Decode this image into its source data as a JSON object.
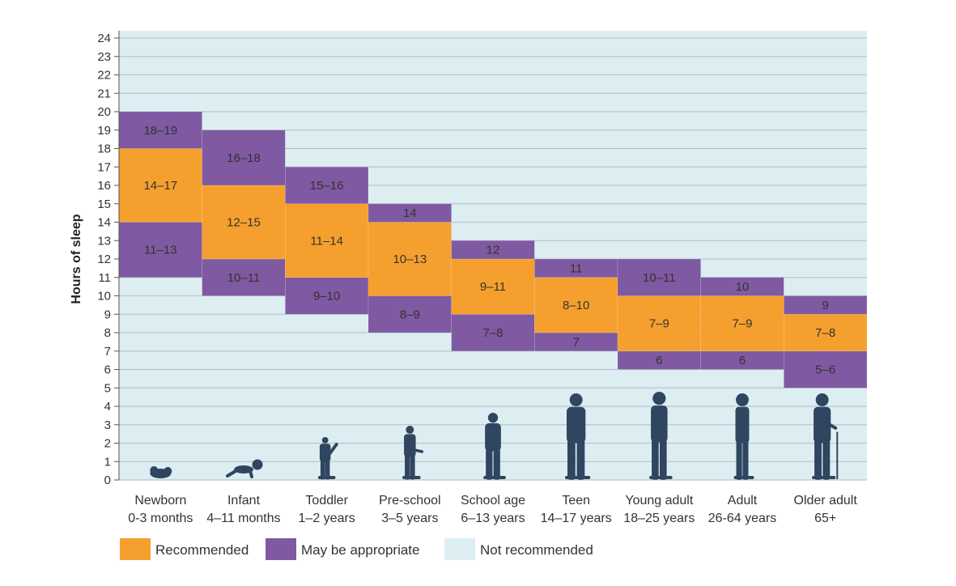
{
  "chart_data": {
    "type": "bar",
    "ylabel": "Hours of sleep",
    "ylim": [
      0,
      24
    ],
    "yticks": [
      0,
      1,
      2,
      3,
      4,
      5,
      6,
      7,
      8,
      9,
      10,
      11,
      12,
      13,
      14,
      15,
      16,
      17,
      18,
      19,
      20,
      21,
      22,
      23,
      24
    ],
    "grid": true,
    "legend_position": "bottom",
    "colors": {
      "recommended": "#f5a02e",
      "may_be_appropriate": "#7f59a1",
      "not_recommended": "#ddeef3",
      "silhouette": "#2f4560",
      "grid": "#b9c6cc"
    },
    "categories": [
      {
        "name": "Newborn",
        "age": "0-3 months",
        "icon": "newborn-silhouette-icon",
        "segments": [
          {
            "type": "may_be_appropriate",
            "from": 11,
            "to": 14,
            "label": "11–13"
          },
          {
            "type": "recommended",
            "from": 14,
            "to": 18,
            "label": "14–17"
          },
          {
            "type": "may_be_appropriate",
            "from": 18,
            "to": 20,
            "label": "18–19"
          }
        ]
      },
      {
        "name": "Infant",
        "age": "4–11 months",
        "icon": "infant-silhouette-icon",
        "segments": [
          {
            "type": "may_be_appropriate",
            "from": 10,
            "to": 12,
            "label": "10–11"
          },
          {
            "type": "recommended",
            "from": 12,
            "to": 16,
            "label": "12–15"
          },
          {
            "type": "may_be_appropriate",
            "from": 16,
            "to": 19,
            "label": "16–18"
          }
        ]
      },
      {
        "name": "Toddler",
        "age": "1–2 years",
        "icon": "toddler-silhouette-icon",
        "segments": [
          {
            "type": "may_be_appropriate",
            "from": 9,
            "to": 11,
            "label": "9–10"
          },
          {
            "type": "recommended",
            "from": 11,
            "to": 15,
            "label": "11–14"
          },
          {
            "type": "may_be_appropriate",
            "from": 15,
            "to": 17,
            "label": "15–16"
          }
        ]
      },
      {
        "name": "Pre-school",
        "age": "3–5 years",
        "icon": "preschooler-silhouette-icon",
        "segments": [
          {
            "type": "may_be_appropriate",
            "from": 8,
            "to": 10,
            "label": "8–9"
          },
          {
            "type": "recommended",
            "from": 10,
            "to": 14,
            "label": "10–13"
          },
          {
            "type": "may_be_appropriate",
            "from": 14,
            "to": 15,
            "label": "14"
          }
        ]
      },
      {
        "name": "School age",
        "age": "6–13 years",
        "icon": "school-child-silhouette-icon",
        "segments": [
          {
            "type": "may_be_appropriate",
            "from": 7,
            "to": 9,
            "label": "7–8"
          },
          {
            "type": "recommended",
            "from": 9,
            "to": 12,
            "label": "9–11"
          },
          {
            "type": "may_be_appropriate",
            "from": 12,
            "to": 13,
            "label": "12"
          }
        ]
      },
      {
        "name": "Teen",
        "age": "14–17 years",
        "icon": "teen-silhouette-icon",
        "segments": [
          {
            "type": "may_be_appropriate",
            "from": 7,
            "to": 8,
            "label": "7"
          },
          {
            "type": "recommended",
            "from": 8,
            "to": 11,
            "label": "8–10"
          },
          {
            "type": "may_be_appropriate",
            "from": 11,
            "to": 12,
            "label": "11"
          }
        ]
      },
      {
        "name": "Young adult",
        "age": "18–25 years",
        "icon": "young-adult-silhouette-icon",
        "segments": [
          {
            "type": "may_be_appropriate",
            "from": 6,
            "to": 7,
            "label": "6"
          },
          {
            "type": "recommended",
            "from": 7,
            "to": 10,
            "label": "7–9"
          },
          {
            "type": "may_be_appropriate",
            "from": 10,
            "to": 12,
            "label": "10–11"
          }
        ]
      },
      {
        "name": "Adult",
        "age": "26-64 years",
        "icon": "adult-silhouette-icon",
        "segments": [
          {
            "type": "may_be_appropriate",
            "from": 6,
            "to": 7,
            "label": "6"
          },
          {
            "type": "recommended",
            "from": 7,
            "to": 10,
            "label": "7–9"
          },
          {
            "type": "may_be_appropriate",
            "from": 10,
            "to": 11,
            "label": "10"
          }
        ]
      },
      {
        "name": "Older adult",
        "age": "65+",
        "icon": "older-adult-silhouette-icon",
        "segments": [
          {
            "type": "may_be_appropriate",
            "from": 5,
            "to": 7,
            "label": "5–6"
          },
          {
            "type": "recommended",
            "from": 7,
            "to": 9,
            "label": "7–8"
          },
          {
            "type": "may_be_appropriate",
            "from": 9,
            "to": 10,
            "label": "9"
          }
        ]
      }
    ],
    "legend": [
      {
        "key": "recommended",
        "label": "Recommended"
      },
      {
        "key": "may_be_appropriate",
        "label": "May be appropriate"
      },
      {
        "key": "not_recommended",
        "label": "Not recommended"
      }
    ]
  }
}
